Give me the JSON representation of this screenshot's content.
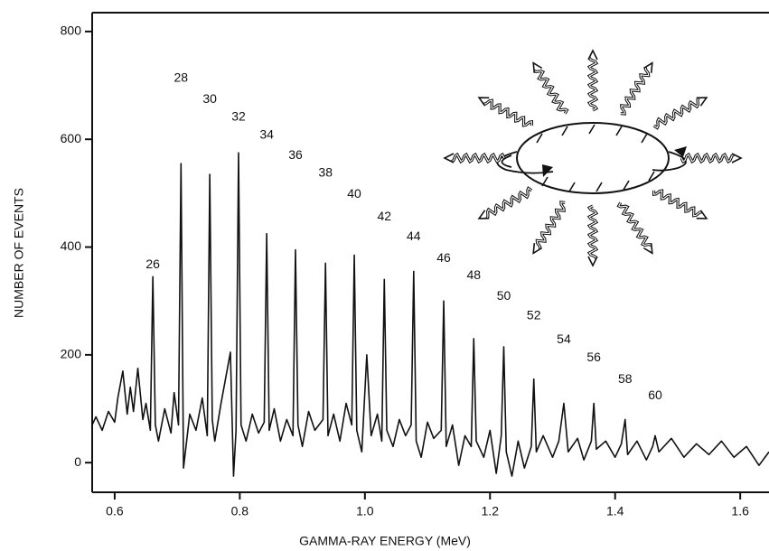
{
  "chart_data": {
    "type": "line",
    "x_label": "GAMMA-RAY ENERGY (MeV)",
    "y_label": "NUMBER OF EVENTS",
    "color": "#111111",
    "xlim": [
      0.564,
      1.646
    ],
    "ylim": [
      -55,
      835
    ],
    "xticks": [
      0.6,
      0.8,
      {
        "value": 1.0,
        "label": "1.0"
      },
      1.2,
      1.4,
      1.6
    ],
    "yticks": [
      0,
      200,
      400,
      600,
      800
    ],
    "x": [
      0.564,
      0.57,
      0.58,
      0.59,
      0.6,
      0.605,
      0.613,
      0.62,
      0.625,
      0.63,
      0.637,
      0.645,
      0.65,
      0.657,
      0.661,
      0.665,
      0.67,
      0.68,
      0.69,
      0.695,
      0.702,
      0.706,
      0.71,
      0.72,
      0.73,
      0.74,
      0.748,
      0.752,
      0.756,
      0.76,
      0.77,
      0.785,
      0.79,
      0.794,
      0.798,
      0.802,
      0.81,
      0.82,
      0.83,
      0.839,
      0.843,
      0.847,
      0.855,
      0.865,
      0.875,
      0.885,
      0.889,
      0.893,
      0.9,
      0.91,
      0.92,
      0.933,
      0.937,
      0.941,
      0.95,
      0.96,
      0.97,
      0.979,
      0.983,
      0.987,
      0.995,
      1.003,
      1.01,
      1.02,
      1.027,
      1.031,
      1.035,
      1.045,
      1.055,
      1.065,
      1.074,
      1.078,
      1.082,
      1.09,
      1.1,
      1.11,
      1.122,
      1.126,
      1.13,
      1.14,
      1.15,
      1.16,
      1.17,
      1.174,
      1.178,
      1.19,
      1.2,
      1.21,
      1.218,
      1.222,
      1.226,
      1.235,
      1.245,
      1.255,
      1.266,
      1.27,
      1.274,
      1.285,
      1.3,
      1.31,
      1.318,
      1.325,
      1.34,
      1.35,
      1.362,
      1.366,
      1.37,
      1.385,
      1.4,
      1.41,
      1.416,
      1.42,
      1.435,
      1.45,
      1.46,
      1.464,
      1.47,
      1.49,
      1.51,
      1.53,
      1.55,
      1.57,
      1.59,
      1.61,
      1.63,
      1.646
    ],
    "values": [
      70,
      85,
      60,
      95,
      75,
      120,
      170,
      90,
      140,
      95,
      175,
      80,
      110,
      60,
      345,
      70,
      40,
      100,
      55,
      130,
      70,
      555,
      -10,
      90,
      60,
      120,
      50,
      535,
      80,
      40,
      110,
      205,
      -25,
      60,
      575,
      70,
      40,
      90,
      55,
      75,
      425,
      60,
      100,
      40,
      80,
      50,
      395,
      70,
      30,
      95,
      60,
      80,
      370,
      50,
      90,
      40,
      110,
      70,
      385,
      60,
      20,
      200,
      50,
      90,
      40,
      340,
      60,
      30,
      80,
      50,
      70,
      355,
      40,
      10,
      75,
      45,
      60,
      300,
      30,
      70,
      -5,
      50,
      30,
      230,
      40,
      10,
      60,
      -20,
      50,
      215,
      20,
      -25,
      40,
      -10,
      30,
      155,
      20,
      50,
      10,
      40,
      110,
      20,
      45,
      5,
      40,
      110,
      25,
      40,
      10,
      35,
      80,
      15,
      40,
      5,
      30,
      50,
      20,
      45,
      10,
      35,
      15,
      40,
      10,
      30,
      -5,
      20
    ],
    "annotations": [
      {
        "text": "26",
        "x": 0.661,
        "y": 367
      },
      {
        "text": "28",
        "x": 0.706,
        "y": 713
      },
      {
        "text": "30",
        "x": 0.752,
        "y": 674
      },
      {
        "text": "32",
        "x": 0.798,
        "y": 641
      },
      {
        "text": "34",
        "x": 0.843,
        "y": 607
      },
      {
        "text": "36",
        "x": 0.889,
        "y": 570
      },
      {
        "text": "38",
        "x": 0.937,
        "y": 537
      },
      {
        "text": "40",
        "x": 0.983,
        "y": 498
      },
      {
        "text": "42",
        "x": 1.031,
        "y": 456
      },
      {
        "text": "44",
        "x": 1.078,
        "y": 419
      },
      {
        "text": "46",
        "x": 1.126,
        "y": 379
      },
      {
        "text": "48",
        "x": 1.174,
        "y": 347
      },
      {
        "text": "50",
        "x": 1.222,
        "y": 308
      },
      {
        "text": "52",
        "x": 1.27,
        "y": 272
      },
      {
        "text": "54",
        "x": 1.318,
        "y": 228
      },
      {
        "text": "56",
        "x": 1.366,
        "y": 194
      },
      {
        "text": "58",
        "x": 1.416,
        "y": 154
      },
      {
        "text": "60",
        "x": 1.464,
        "y": 124
      }
    ]
  }
}
